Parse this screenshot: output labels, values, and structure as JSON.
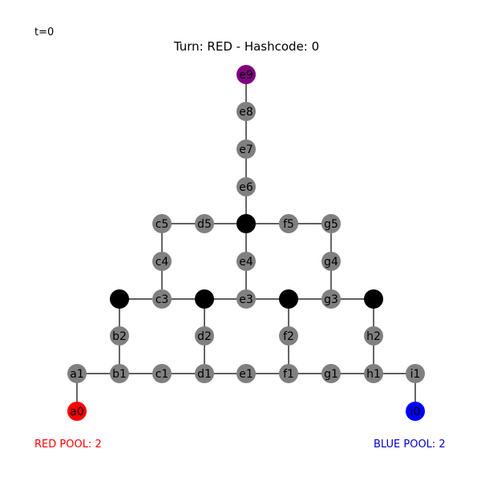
{
  "timestep": "t=0",
  "title": "Turn: RED - Hashcode: 0",
  "red_pool": "RED POOL: 2",
  "blue_pool": "BLUE POOL: 2",
  "colors": {
    "node": "#808080",
    "blocked": "#000000",
    "red": "#ff0000",
    "blue": "#0000ff",
    "goal": "#800080",
    "edge": "#000000"
  },
  "nodes": [
    {
      "id": "e9",
      "label": "e9",
      "state": "goal"
    },
    {
      "id": "e8",
      "label": "e8",
      "state": "empty"
    },
    {
      "id": "e7",
      "label": "e7",
      "state": "empty"
    },
    {
      "id": "e6",
      "label": "e6",
      "state": "empty"
    },
    {
      "id": "c5",
      "label": "c5",
      "state": "empty"
    },
    {
      "id": "d5",
      "label": "d5",
      "state": "empty"
    },
    {
      "id": "e5",
      "label": "",
      "state": "blocked"
    },
    {
      "id": "f5",
      "label": "f5",
      "state": "empty"
    },
    {
      "id": "g5",
      "label": "g5",
      "state": "empty"
    },
    {
      "id": "c4",
      "label": "c4",
      "state": "empty"
    },
    {
      "id": "e4",
      "label": "e4",
      "state": "empty"
    },
    {
      "id": "g4",
      "label": "g4",
      "state": "empty"
    },
    {
      "id": "b3",
      "label": "",
      "state": "blocked"
    },
    {
      "id": "c3",
      "label": "c3",
      "state": "empty"
    },
    {
      "id": "d3",
      "label": "",
      "state": "blocked"
    },
    {
      "id": "e3",
      "label": "e3",
      "state": "empty"
    },
    {
      "id": "f3",
      "label": "",
      "state": "blocked"
    },
    {
      "id": "g3",
      "label": "g3",
      "state": "empty"
    },
    {
      "id": "h3",
      "label": "",
      "state": "blocked"
    },
    {
      "id": "b2",
      "label": "b2",
      "state": "empty"
    },
    {
      "id": "d2",
      "label": "d2",
      "state": "empty"
    },
    {
      "id": "f2",
      "label": "f2",
      "state": "empty"
    },
    {
      "id": "h2",
      "label": "h2",
      "state": "empty"
    },
    {
      "id": "a1",
      "label": "a1",
      "state": "empty"
    },
    {
      "id": "b1",
      "label": "b1",
      "state": "empty"
    },
    {
      "id": "c1",
      "label": "c1",
      "state": "empty"
    },
    {
      "id": "d1",
      "label": "d1",
      "state": "empty"
    },
    {
      "id": "e1",
      "label": "e1",
      "state": "empty"
    },
    {
      "id": "f1",
      "label": "f1",
      "state": "empty"
    },
    {
      "id": "g1",
      "label": "g1",
      "state": "empty"
    },
    {
      "id": "h1",
      "label": "h1",
      "state": "empty"
    },
    {
      "id": "i1",
      "label": "i1",
      "state": "empty"
    },
    {
      "id": "a0",
      "label": "a0",
      "state": "red"
    },
    {
      "id": "i0",
      "label": "i0",
      "state": "blue"
    }
  ],
  "edges": [
    [
      "e9",
      "e8"
    ],
    [
      "e8",
      "e7"
    ],
    [
      "e7",
      "e6"
    ],
    [
      "e6",
      "e5"
    ],
    [
      "c5",
      "d5"
    ],
    [
      "d5",
      "e5"
    ],
    [
      "e5",
      "f5"
    ],
    [
      "f5",
      "g5"
    ],
    [
      "c5",
      "c4"
    ],
    [
      "e5",
      "e4"
    ],
    [
      "g5",
      "g4"
    ],
    [
      "c4",
      "c3"
    ],
    [
      "e4",
      "e3"
    ],
    [
      "g4",
      "g3"
    ],
    [
      "b3",
      "c3"
    ],
    [
      "c3",
      "d3"
    ],
    [
      "d3",
      "e3"
    ],
    [
      "e3",
      "f3"
    ],
    [
      "f3",
      "g3"
    ],
    [
      "g3",
      "h3"
    ],
    [
      "b3",
      "b2"
    ],
    [
      "d3",
      "d2"
    ],
    [
      "f3",
      "f2"
    ],
    [
      "h3",
      "h2"
    ],
    [
      "b2",
      "b1"
    ],
    [
      "d2",
      "d1"
    ],
    [
      "f2",
      "f1"
    ],
    [
      "h2",
      "h1"
    ],
    [
      "a1",
      "b1"
    ],
    [
      "b1",
      "c1"
    ],
    [
      "c1",
      "d1"
    ],
    [
      "d1",
      "e1"
    ],
    [
      "e1",
      "f1"
    ],
    [
      "f1",
      "g1"
    ],
    [
      "g1",
      "h1"
    ],
    [
      "h1",
      "i1"
    ],
    [
      "a1",
      "a0"
    ],
    [
      "i1",
      "i0"
    ]
  ]
}
